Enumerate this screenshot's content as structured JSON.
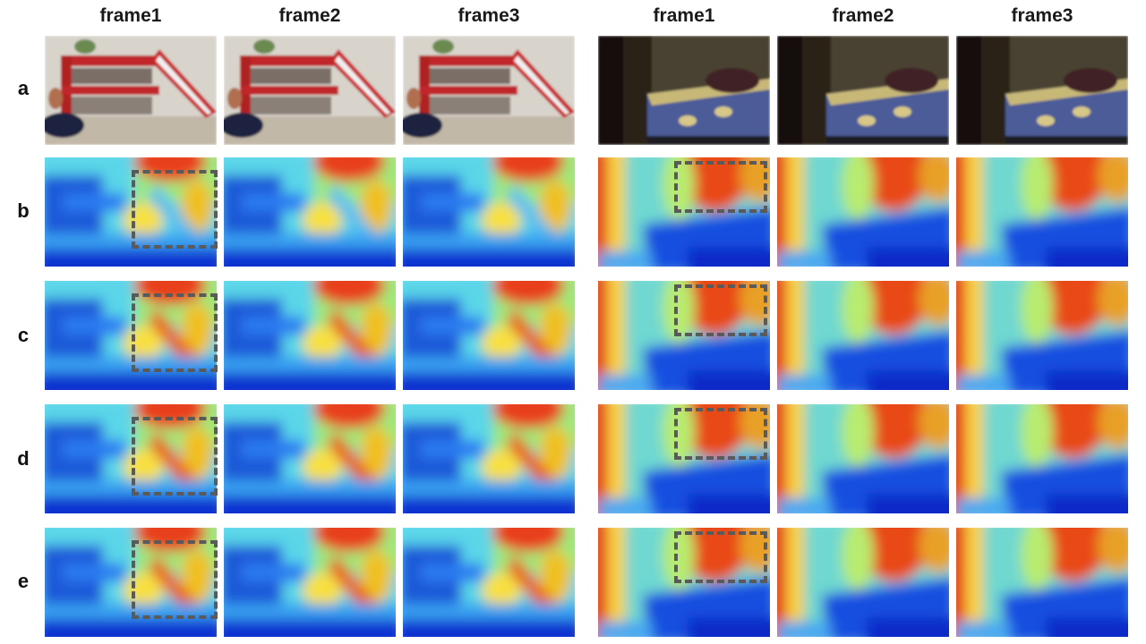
{
  "columns": [
    "frame1",
    "frame2",
    "frame3",
    "frame1",
    "frame2",
    "frame3"
  ],
  "rows": [
    "a",
    "b",
    "c",
    "d",
    "e"
  ],
  "scene_a_description": "bunk-bed-room",
  "scene_b_description": "bed-in-dark-room"
}
